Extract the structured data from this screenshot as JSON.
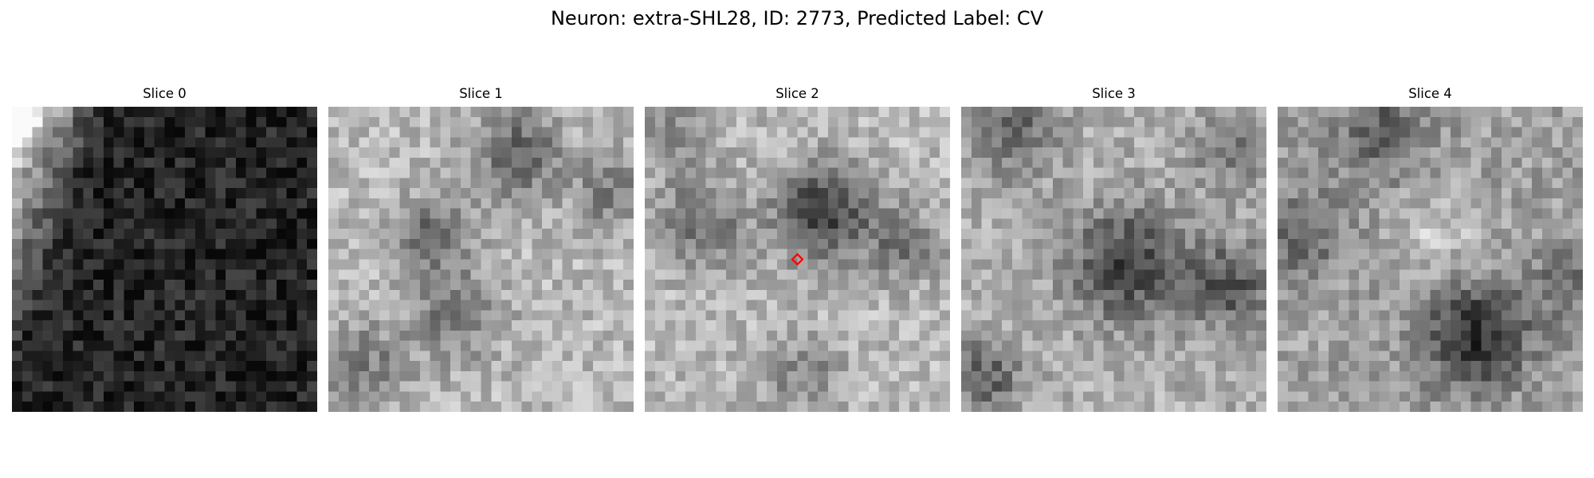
{
  "figure": {
    "title": "Neuron: extra-SHL28, ID: 2773, Predicted Label: CV"
  },
  "slices": [
    {
      "title": "Slice 0",
      "seed": 11,
      "style": "dark-corner"
    },
    {
      "title": "Slice 1",
      "seed": 23,
      "style": "bright-noisy"
    },
    {
      "title": "Slice 2",
      "seed": 37,
      "style": "bright-center",
      "marker": {
        "color": "#ff0000",
        "shape": "diamond-outline"
      }
    },
    {
      "title": "Slice 3",
      "seed": 53,
      "style": "mixed-blobs"
    },
    {
      "title": "Slice 4",
      "seed": 71,
      "style": "mixed-low-blob"
    }
  ]
}
